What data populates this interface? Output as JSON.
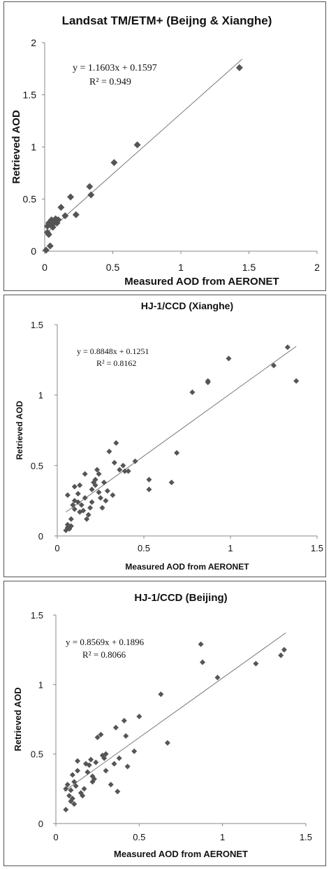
{
  "chart_data": [
    {
      "type": "scatter",
      "title": "Landsat TM/ETM+ (Beijng & Xianghe)",
      "xlabel": "Measured AOD from AERONET",
      "ylabel": "Retrieved AOD",
      "xlim": [
        0,
        2
      ],
      "ylim": [
        0,
        2
      ],
      "xticks": [
        "0",
        "0.5",
        "1",
        "1.5",
        "2"
      ],
      "yticks": [
        "0",
        "0.5",
        "1",
        "1.5",
        "2"
      ],
      "equation": "y = 1.1603x + 0.1597",
      "r2": "R² = 0.949",
      "trendline": {
        "slope": 1.1603,
        "intercept": 0.1597,
        "x_range": [
          0.01,
          1.45
        ]
      },
      "grid": false,
      "marker_color": "#555555",
      "points": [
        [
          0.01,
          0.01
        ],
        [
          0.02,
          0.18
        ],
        [
          0.02,
          0.24
        ],
        [
          0.03,
          0.16
        ],
        [
          0.03,
          0.27
        ],
        [
          0.04,
          0.05
        ],
        [
          0.05,
          0.25
        ],
        [
          0.05,
          0.3
        ],
        [
          0.06,
          0.23
        ],
        [
          0.07,
          0.28
        ],
        [
          0.08,
          0.31
        ],
        [
          0.09,
          0.27
        ],
        [
          0.1,
          0.3
        ],
        [
          0.12,
          0.42
        ],
        [
          0.15,
          0.34
        ],
        [
          0.19,
          0.52
        ],
        [
          0.23,
          0.35
        ],
        [
          0.33,
          0.62
        ],
        [
          0.34,
          0.54
        ],
        [
          0.51,
          0.85
        ],
        [
          0.68,
          1.02
        ],
        [
          1.43,
          1.76
        ]
      ]
    },
    {
      "type": "scatter",
      "title": "HJ-1/CCD (Xianghe)",
      "xlabel": "Measured AOD from AERONET",
      "ylabel": "Retrieved AOD",
      "xlim": [
        0,
        1.5
      ],
      "ylim": [
        0,
        1.5
      ],
      "xticks": [
        "0",
        "0.5",
        "1",
        "1.5"
      ],
      "yticks": [
        "0",
        "0.5",
        "1",
        "1.5"
      ],
      "equation": "y = 0.8848x + 0.1251",
      "r2": "R² = 0.8162",
      "trendline": {
        "slope": 0.8848,
        "intercept": 0.1251,
        "x_range": [
          0.05,
          1.38
        ]
      },
      "grid": false,
      "marker_color": "#555555",
      "points": [
        [
          0.05,
          0.04
        ],
        [
          0.06,
          0.06
        ],
        [
          0.06,
          0.08
        ],
        [
          0.07,
          0.05
        ],
        [
          0.08,
          0.07
        ],
        [
          0.08,
          0.12
        ],
        [
          0.06,
          0.29
        ],
        [
          0.09,
          0.22
        ],
        [
          0.1,
          0.19
        ],
        [
          0.1,
          0.25
        ],
        [
          0.1,
          0.35
        ],
        [
          0.12,
          0.3
        ],
        [
          0.12,
          0.24
        ],
        [
          0.13,
          0.17
        ],
        [
          0.13,
          0.36
        ],
        [
          0.14,
          0.22
        ],
        [
          0.15,
          0.18
        ],
        [
          0.16,
          0.27
        ],
        [
          0.16,
          0.44
        ],
        [
          0.17,
          0.12
        ],
        [
          0.18,
          0.15
        ],
        [
          0.19,
          0.2
        ],
        [
          0.2,
          0.24
        ],
        [
          0.2,
          0.33
        ],
        [
          0.21,
          0.38
        ],
        [
          0.22,
          0.36
        ],
        [
          0.22,
          0.4
        ],
        [
          0.23,
          0.47
        ],
        [
          0.24,
          0.44
        ],
        [
          0.24,
          0.31
        ],
        [
          0.25,
          0.27
        ],
        [
          0.26,
          0.2
        ],
        [
          0.27,
          0.38
        ],
        [
          0.28,
          0.25
        ],
        [
          0.29,
          0.32
        ],
        [
          0.3,
          0.6
        ],
        [
          0.32,
          0.29
        ],
        [
          0.33,
          0.52
        ],
        [
          0.34,
          0.66
        ],
        [
          0.36,
          0.47
        ],
        [
          0.38,
          0.5
        ],
        [
          0.39,
          0.46
        ],
        [
          0.41,
          0.46
        ],
        [
          0.45,
          0.53
        ],
        [
          0.53,
          0.4
        ],
        [
          0.53,
          0.33
        ],
        [
          0.66,
          0.38
        ],
        [
          0.69,
          0.59
        ],
        [
          0.78,
          1.02
        ],
        [
          0.87,
          1.09
        ],
        [
          0.87,
          1.1
        ],
        [
          0.99,
          1.26
        ],
        [
          1.25,
          1.21
        ],
        [
          1.33,
          1.34
        ],
        [
          1.38,
          1.1
        ]
      ]
    },
    {
      "type": "scatter",
      "title": "HJ-1/CCD (Beijing)",
      "xlabel": "Measured AOD from AERONET",
      "ylabel": "Retrieved AOD",
      "xlim": [
        0,
        1.5
      ],
      "ylim": [
        0,
        1.5
      ],
      "xticks": [
        "0",
        "0.5",
        "1",
        "1.5"
      ],
      "yticks": [
        "0",
        "0.5",
        "1",
        "1.5"
      ],
      "equation": "y = 0.8569x + 0.1896",
      "r2": "R² = 0.8066",
      "trendline": {
        "slope": 0.8569,
        "intercept": 0.1896,
        "x_range": [
          0.05,
          1.38
        ]
      },
      "grid": false,
      "marker_color": "#555555",
      "points": [
        [
          0.06,
          0.1
        ],
        [
          0.06,
          0.25
        ],
        [
          0.07,
          0.28
        ],
        [
          0.08,
          0.2
        ],
        [
          0.09,
          0.16
        ],
        [
          0.09,
          0.24
        ],
        [
          0.1,
          0.18
        ],
        [
          0.1,
          0.35
        ],
        [
          0.11,
          0.14
        ],
        [
          0.11,
          0.3
        ],
        [
          0.12,
          0.27
        ],
        [
          0.13,
          0.38
        ],
        [
          0.13,
          0.45
        ],
        [
          0.15,
          0.22
        ],
        [
          0.16,
          0.2
        ],
        [
          0.17,
          0.25
        ],
        [
          0.18,
          0.43
        ],
        [
          0.19,
          0.37
        ],
        [
          0.2,
          0.42
        ],
        [
          0.21,
          0.46
        ],
        [
          0.22,
          0.34
        ],
        [
          0.22,
          0.3
        ],
        [
          0.23,
          0.32
        ],
        [
          0.24,
          0.44
        ],
        [
          0.25,
          0.62
        ],
        [
          0.27,
          0.64
        ],
        [
          0.28,
          0.49
        ],
        [
          0.29,
          0.47
        ],
        [
          0.3,
          0.38
        ],
        [
          0.3,
          0.5
        ],
        [
          0.33,
          0.28
        ],
        [
          0.35,
          0.43
        ],
        [
          0.36,
          0.69
        ],
        [
          0.37,
          0.23
        ],
        [
          0.38,
          0.47
        ],
        [
          0.41,
          0.74
        ],
        [
          0.42,
          0.63
        ],
        [
          0.43,
          0.41
        ],
        [
          0.47,
          0.52
        ],
        [
          0.5,
          0.77
        ],
        [
          0.63,
          0.93
        ],
        [
          0.67,
          0.58
        ],
        [
          0.87,
          1.29
        ],
        [
          0.88,
          1.16
        ],
        [
          0.97,
          1.05
        ],
        [
          1.2,
          1.15
        ],
        [
          1.35,
          1.21
        ],
        [
          1.37,
          1.25
        ]
      ]
    }
  ]
}
